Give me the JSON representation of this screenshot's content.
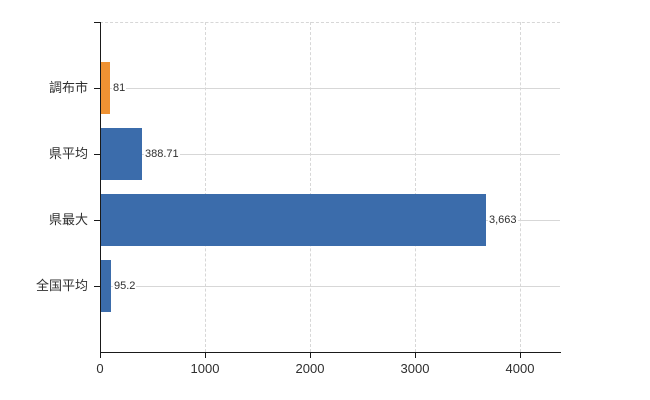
{
  "chart_data": {
    "type": "bar",
    "orientation": "horizontal",
    "title": "",
    "xlabel": "",
    "ylabel": "",
    "categories": [
      "調布市",
      "県平均",
      "県最大",
      "全国平均"
    ],
    "values": [
      81,
      388.71,
      3663,
      95.2
    ],
    "value_labels": [
      "81",
      "388.71",
      "3,663",
      "95.2"
    ],
    "bar_colors": [
      "#ef9233",
      "#3b6cab",
      "#3b6cab",
      "#3b6cab"
    ],
    "xlim": [
      0,
      4380
    ],
    "x_ticks": [
      0,
      1000,
      2000,
      3000,
      4000
    ],
    "x_tick_labels": [
      "0",
      "1000",
      "2000",
      "3000",
      "4000"
    ],
    "grid": "on",
    "legend": "none"
  },
  "colors": {
    "bar_orange": "#ef9233",
    "bar_blue": "#3b6cab",
    "axis": "#1a1a1a",
    "gridline": "#d7d7d7",
    "text": "#2f2f2f",
    "background": "#ffffff"
  }
}
